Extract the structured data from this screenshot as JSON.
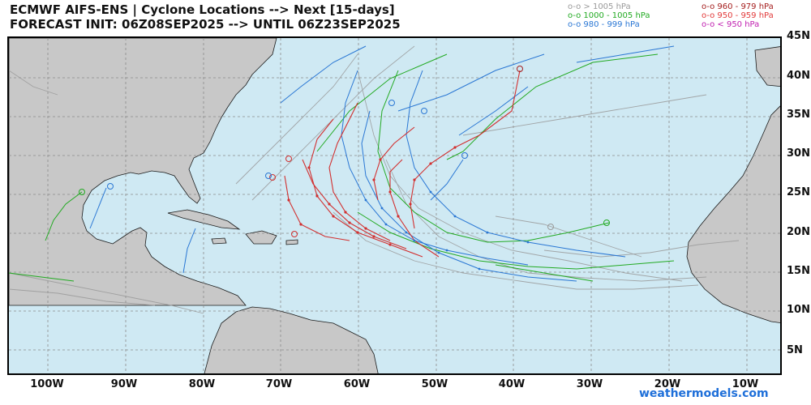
{
  "header": {
    "title_line1": "ECMWF AIFS-ENS | Cyclone Locations --> Next [15-days]",
    "title_line2": "FORECAST INIT: 06Z08SEP2025 --> UNTIL 06Z23SEP2025"
  },
  "legend": [
    {
      "label": "o-o > 1005 hPa",
      "color": "#9a9a9a"
    },
    {
      "label": "o-o 1000 - 1005 hPa",
      "color": "#22aa22"
    },
    {
      "label": "o-o 980 - 999 hPa",
      "color": "#2a77d4"
    },
    {
      "label": "o-o 960 - 979 hPa",
      "color": "#a51e1e"
    },
    {
      "label": "o-o 950 - 959 hPa",
      "color": "#e23a3a"
    },
    {
      "label": "o-o < 950 hPa",
      "color": "#c020b0"
    }
  ],
  "axes": {
    "lat_labels": [
      "45N",
      "40N",
      "35N",
      "30N",
      "25N",
      "20N",
      "15N",
      "10N",
      "5N"
    ],
    "lon_labels": [
      "100W",
      "90W",
      "80W",
      "70W",
      "60W",
      "50W",
      "40W",
      "30W",
      "20W",
      "10W"
    ]
  },
  "colors": {
    "ocean": "#cfe9f3",
    "land": "#c8c8c8",
    "border": "#1a1a1a",
    "grid": "#8a8a8a"
  },
  "credit": "weathermodels.com"
}
